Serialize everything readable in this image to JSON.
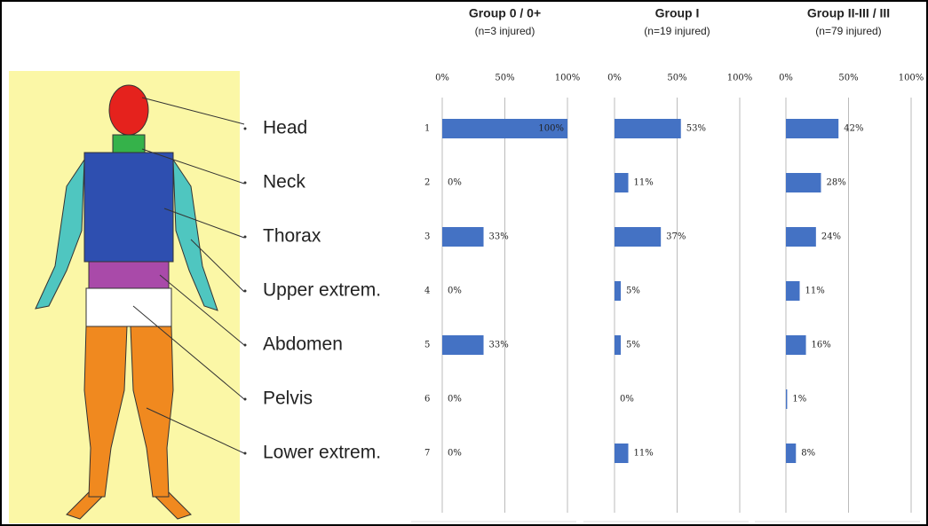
{
  "body_regions": [
    "Head",
    "Neck",
    "Thorax",
    "Upper extrem.",
    "Abdomen",
    "Pelvis",
    "Lower extrem."
  ],
  "chart_data": [
    {
      "type": "bar",
      "orientation": "horizontal",
      "title": "Group 0 / 0+",
      "subtitle": "(n=3 injured)",
      "categories": [
        "1",
        "2",
        "3",
        "4",
        "5",
        "6",
        "7"
      ],
      "values": [
        100,
        0,
        33,
        0,
        33,
        0,
        0
      ],
      "value_labels": [
        "100%",
        "0%",
        "33%",
        "0%",
        "33%",
        "0%",
        "0%"
      ],
      "color": "#4472c4",
      "xlim": [
        0,
        100
      ],
      "xticks": [
        {
          "value": 0,
          "label": "0%"
        },
        {
          "value": 50,
          "label": "50%"
        },
        {
          "value": 100,
          "label": "100%"
        }
      ],
      "grid": true
    },
    {
      "type": "bar",
      "orientation": "horizontal",
      "title": "Group I",
      "subtitle": "(n=19 injured)",
      "categories": [
        null,
        null,
        null,
        null,
        null,
        null,
        null
      ],
      "values": [
        53,
        11,
        37,
        5,
        5,
        0,
        11
      ],
      "value_labels": [
        "53%",
        "11%",
        "37%",
        "5%",
        "5%",
        "0%",
        "11%"
      ],
      "color": "#4472c4",
      "xlim": [
        0,
        100
      ],
      "xticks": [
        {
          "value": 0,
          "label": "0%"
        },
        {
          "value": 50,
          "label": "50%"
        },
        {
          "value": 100,
          "label": "100%"
        }
      ],
      "grid": true
    },
    {
      "type": "bar",
      "orientation": "horizontal",
      "title": "Group II-III / III",
      "subtitle": "(n=79 injured)",
      "categories": [
        null,
        null,
        null,
        null,
        null,
        null,
        null
      ],
      "values": [
        42,
        28,
        24,
        11,
        16,
        1,
        8
      ],
      "value_labels": [
        "42%",
        "28%",
        "24%",
        "11%",
        "16%",
        "1%",
        "8%"
      ],
      "color": "#4472c4",
      "xlim": [
        0,
        100
      ],
      "xticks": [
        {
          "value": 0,
          "label": "0%"
        },
        {
          "value": 50,
          "label": "50%"
        },
        {
          "value": 100,
          "label": "100%"
        }
      ],
      "grid": true
    }
  ]
}
